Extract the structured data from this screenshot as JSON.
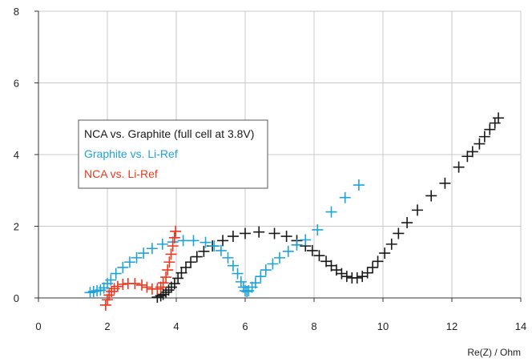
{
  "chart_data": {
    "type": "scatter",
    "title": "",
    "xlabel": "Re(Z) / Ohm",
    "ylabel": "",
    "xlim": [
      0,
      14
    ],
    "ylim": [
      0,
      8
    ],
    "x_ticks": [
      "0",
      "2",
      "4",
      "6",
      "8",
      "10",
      "12",
      "14"
    ],
    "y_ticks": [
      "0",
      "2",
      "4",
      "6",
      "8"
    ],
    "grid": true,
    "legend_position": "left",
    "marker": "+",
    "series": [
      {
        "name": "NCA vs. Graphite (full cell at 3.8V)",
        "color": "#1a1a1a",
        "points": [
          [
            3.45,
            0.02
          ],
          [
            3.55,
            0.06
          ],
          [
            3.62,
            0.1
          ],
          [
            3.7,
            0.16
          ],
          [
            3.78,
            0.22
          ],
          [
            3.86,
            0.3
          ],
          [
            3.95,
            0.4
          ],
          [
            4.05,
            0.55
          ],
          [
            4.15,
            0.7
          ],
          [
            4.28,
            0.85
          ],
          [
            4.42,
            1.0
          ],
          [
            4.6,
            1.15
          ],
          [
            4.8,
            1.3
          ],
          [
            5.05,
            1.45
          ],
          [
            5.35,
            1.6
          ],
          [
            5.65,
            1.72
          ],
          [
            6.0,
            1.8
          ],
          [
            6.4,
            1.84
          ],
          [
            6.85,
            1.8
          ],
          [
            7.2,
            1.72
          ],
          [
            7.5,
            1.6
          ],
          [
            7.75,
            1.45
          ],
          [
            7.95,
            1.32
          ],
          [
            8.15,
            1.18
          ],
          [
            8.35,
            1.02
          ],
          [
            8.5,
            0.9
          ],
          [
            8.65,
            0.78
          ],
          [
            8.8,
            0.68
          ],
          [
            8.95,
            0.6
          ],
          [
            9.1,
            0.56
          ],
          [
            9.25,
            0.56
          ],
          [
            9.4,
            0.6
          ],
          [
            9.55,
            0.7
          ],
          [
            9.7,
            0.85
          ],
          [
            9.85,
            1.02
          ],
          [
            10.05,
            1.25
          ],
          [
            10.25,
            1.5
          ],
          [
            10.45,
            1.8
          ],
          [
            10.7,
            2.1
          ],
          [
            11.0,
            2.45
          ],
          [
            11.4,
            2.85
          ],
          [
            11.8,
            3.2
          ],
          [
            12.2,
            3.65
          ],
          [
            12.45,
            3.95
          ],
          [
            12.6,
            4.08
          ],
          [
            12.8,
            4.3
          ],
          [
            12.95,
            4.5
          ],
          [
            13.1,
            4.7
          ],
          [
            13.25,
            4.88
          ],
          [
            13.35,
            5.02
          ]
        ]
      },
      {
        "name": "Graphite vs. Li-Ref",
        "color": "#1ea3d8",
        "points": [
          [
            1.5,
            0.15
          ],
          [
            1.6,
            0.18
          ],
          [
            1.7,
            0.2
          ],
          [
            1.8,
            0.22
          ],
          [
            1.9,
            0.28
          ],
          [
            2.0,
            0.4
          ],
          [
            2.1,
            0.5
          ],
          [
            2.25,
            0.68
          ],
          [
            2.45,
            0.85
          ],
          [
            2.65,
            1.0
          ],
          [
            2.85,
            1.12
          ],
          [
            3.05,
            1.25
          ],
          [
            3.3,
            1.38
          ],
          [
            3.6,
            1.5
          ],
          [
            3.9,
            1.56
          ],
          [
            4.2,
            1.6
          ],
          [
            4.5,
            1.6
          ],
          [
            4.85,
            1.55
          ],
          [
            5.1,
            1.45
          ],
          [
            5.3,
            1.32
          ],
          [
            5.5,
            1.12
          ],
          [
            5.65,
            0.9
          ],
          [
            5.78,
            0.68
          ],
          [
            5.88,
            0.45
          ],
          [
            5.95,
            0.3
          ],
          [
            6.0,
            0.2
          ],
          [
            6.05,
            0.18
          ],
          [
            6.1,
            0.2
          ],
          [
            6.2,
            0.3
          ],
          [
            6.3,
            0.42
          ],
          [
            6.45,
            0.6
          ],
          [
            6.6,
            0.78
          ],
          [
            6.8,
            0.95
          ],
          [
            7.0,
            1.12
          ],
          [
            7.25,
            1.3
          ],
          [
            7.5,
            1.48
          ],
          [
            7.75,
            1.62
          ],
          [
            8.1,
            1.9
          ],
          [
            8.5,
            2.4
          ],
          [
            8.9,
            2.8
          ],
          [
            9.3,
            3.15
          ]
        ]
      },
      {
        "name": "NCA vs. Li-Ref",
        "color": "#e8391e",
        "points": [
          [
            1.95,
            -0.2
          ],
          [
            2.0,
            -0.05
          ],
          [
            2.05,
            0.08
          ],
          [
            2.12,
            0.18
          ],
          [
            2.2,
            0.26
          ],
          [
            2.3,
            0.32
          ],
          [
            2.45,
            0.38
          ],
          [
            2.6,
            0.4
          ],
          [
            2.8,
            0.4
          ],
          [
            3.0,
            0.36
          ],
          [
            3.15,
            0.3
          ],
          [
            3.3,
            0.25
          ],
          [
            3.45,
            0.25
          ],
          [
            3.55,
            0.3
          ],
          [
            3.62,
            0.42
          ],
          [
            3.7,
            0.58
          ],
          [
            3.75,
            0.78
          ],
          [
            3.8,
            1.0
          ],
          [
            3.85,
            1.22
          ],
          [
            3.9,
            1.45
          ],
          [
            3.95,
            1.68
          ],
          [
            3.98,
            1.86
          ]
        ]
      }
    ]
  }
}
